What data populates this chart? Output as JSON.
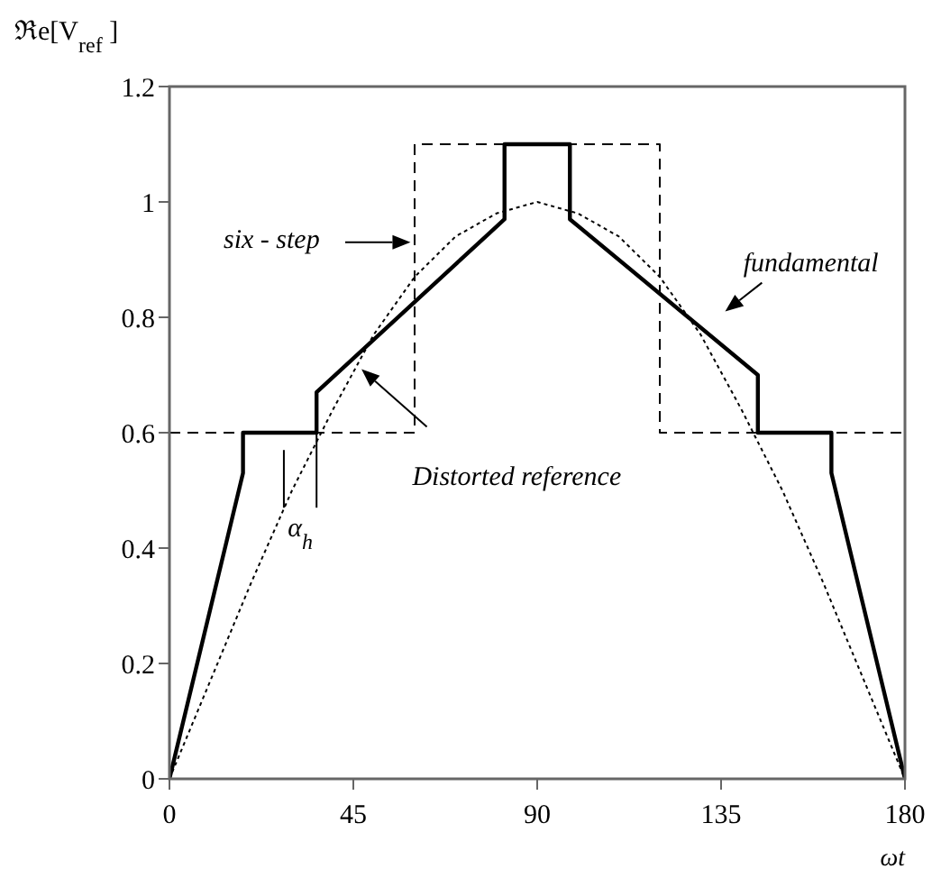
{
  "chart_data": {
    "type": "line",
    "ylabel": "ℜe[V$_{ref}$ ]",
    "xlabel": "ωt",
    "xlim": [
      0,
      180
    ],
    "ylim": [
      0,
      1.2
    ],
    "xticks": [
      0,
      45,
      90,
      135,
      180
    ],
    "yticks": [
      0,
      0.2,
      0.4,
      0.6,
      0.8,
      1,
      1.2
    ],
    "marker": "none",
    "series": [
      {
        "color": "#000000",
        "line_style": "solid",
        "x": [
          0,
          18,
          18,
          36,
          36,
          82,
          82,
          98,
          98,
          144,
          144,
          162,
          162,
          180
        ],
        "values": [
          0,
          0.53,
          0.6,
          0.6,
          0.67,
          0.97,
          1.1,
          1.1,
          0.97,
          0.7,
          0.6,
          0.6,
          0.53,
          0
        ]
      },
      {
        "color": "#000000",
        "line_style": "dashed",
        "x": [
          0,
          60,
          60,
          120,
          120,
          180
        ],
        "values": [
          0.6,
          0.6,
          1.1,
          1.1,
          0.6,
          0.6
        ]
      },
      {
        "color": "#000000",
        "line_style": "dotted",
        "x": [
          0,
          10,
          20,
          30,
          40,
          50,
          60,
          70,
          80,
          90,
          100,
          110,
          120,
          130,
          140,
          150,
          160,
          170,
          180
        ],
        "values": [
          0,
          0.17,
          0.34,
          0.5,
          0.64,
          0.77,
          0.87,
          0.94,
          0.98,
          1,
          0.98,
          0.94,
          0.87,
          0.77,
          0.64,
          0.5,
          0.34,
          0.17,
          0
        ]
      }
    ],
    "annotations": [
      "six - step",
      "fundamental",
      "Distorted reference",
      {
        "text": "α$_{h}$",
        "x": 36,
        "y": 0.6
      }
    ]
  }
}
